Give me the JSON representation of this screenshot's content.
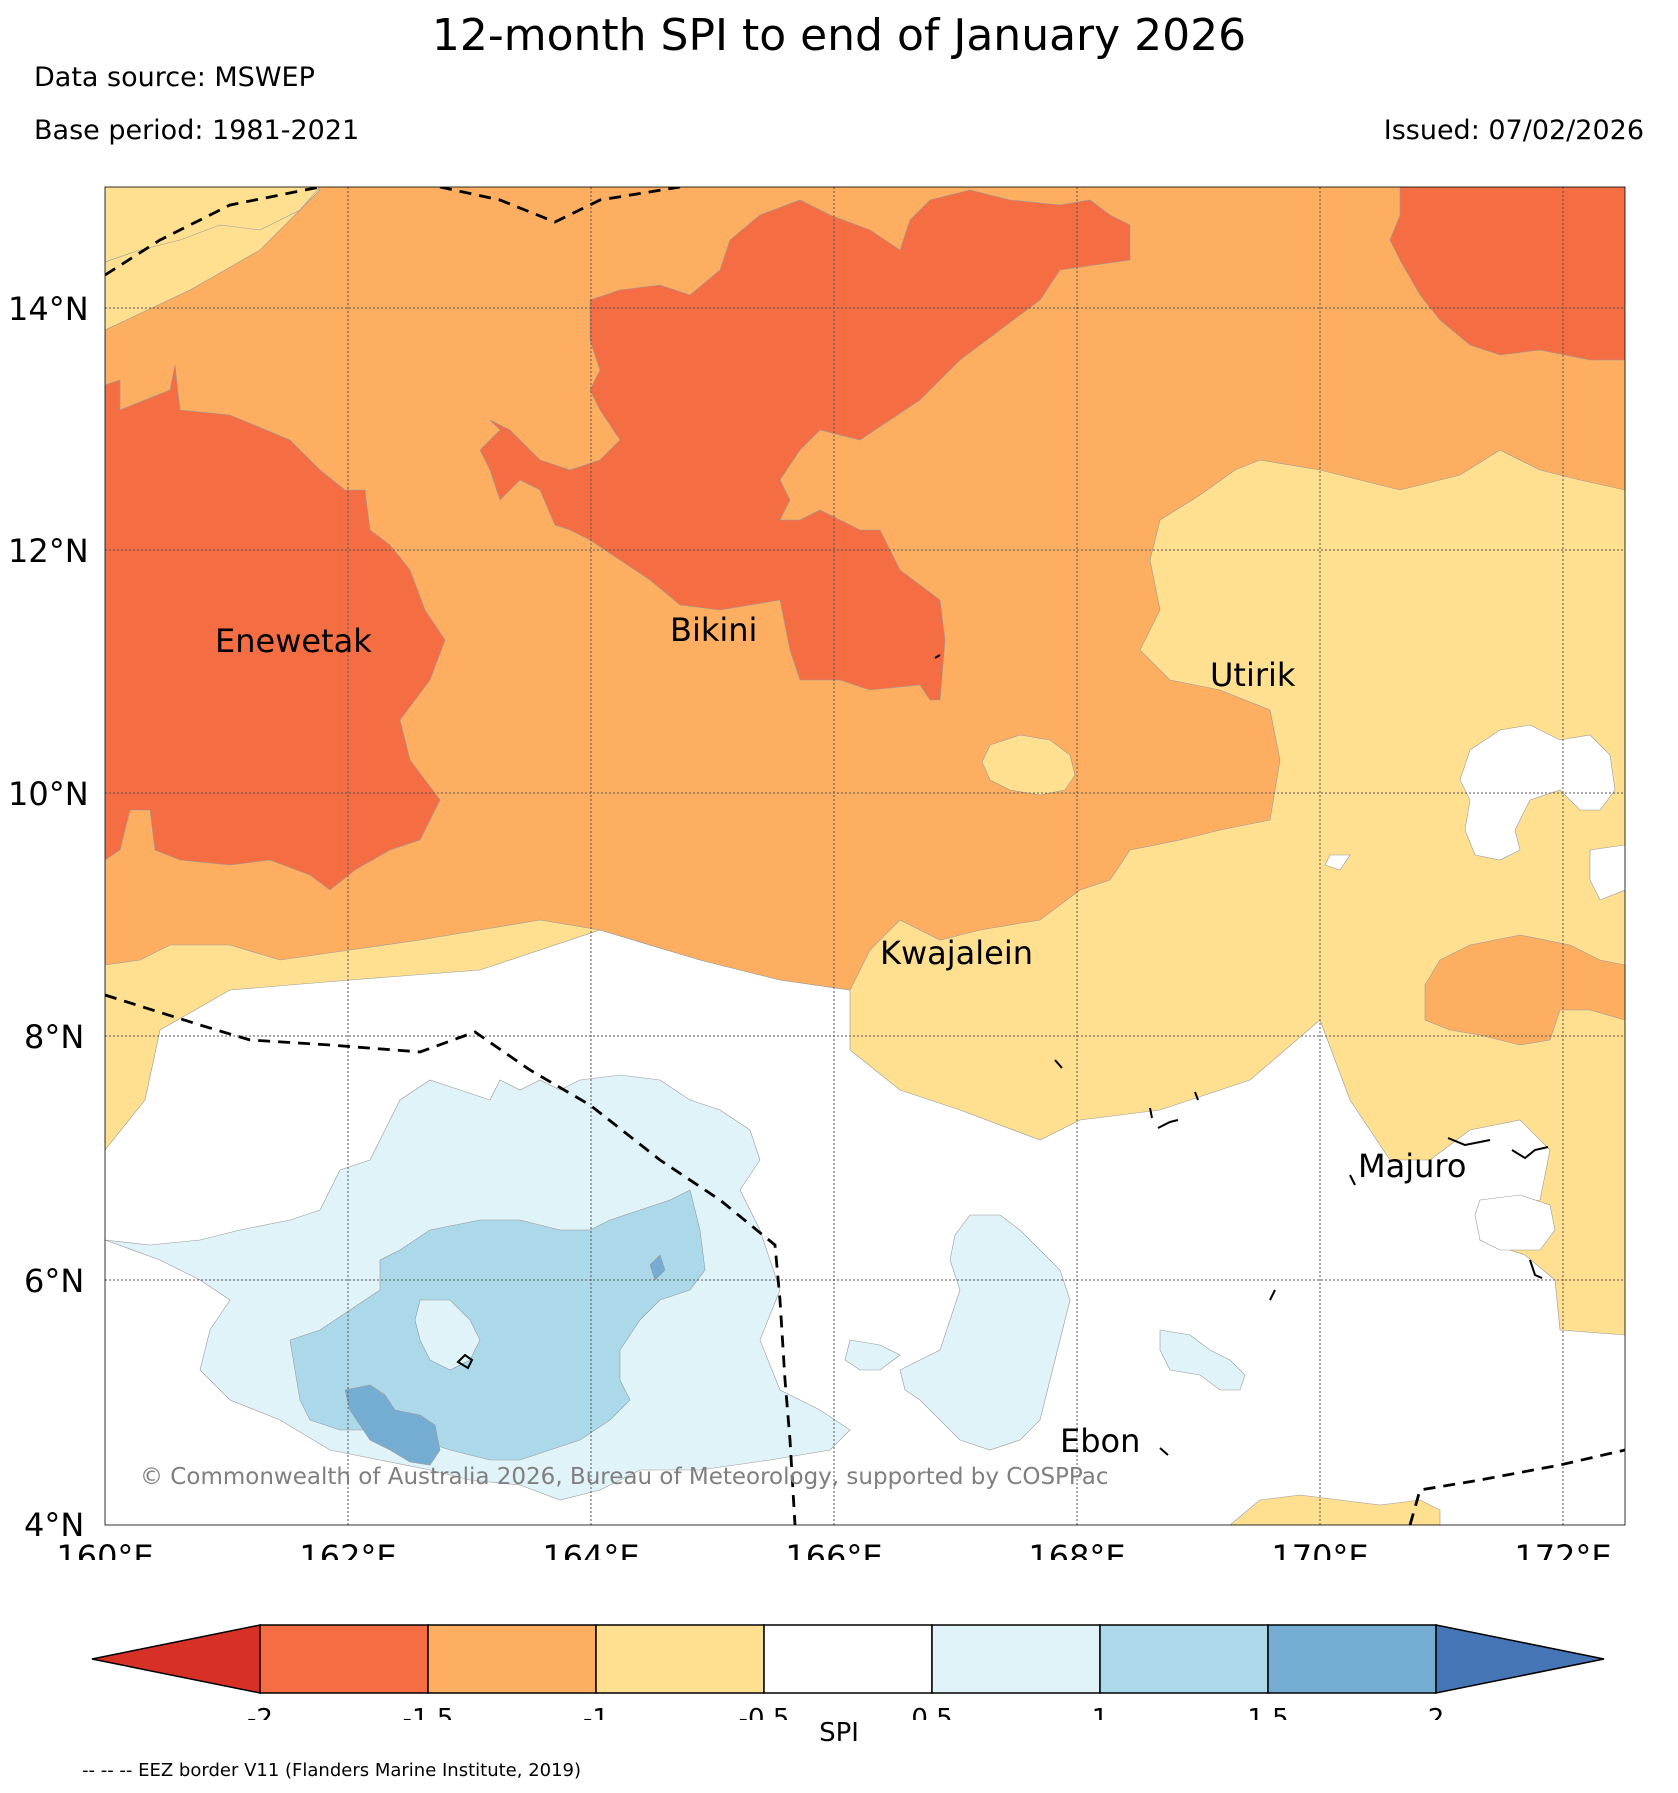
{
  "header": {
    "title": "12-month SPI to end of January 2026",
    "data_source": "Data source: MSWEP",
    "base_period": "Base period: 1981-2021",
    "issued": "Issued: 07/02/2026"
  },
  "map": {
    "lat_labels": [
      "14°N",
      "12°N",
      "10°N",
      "8°N",
      "6°N",
      "4°N"
    ],
    "lon_labels": [
      "160°E",
      "162°E",
      "164°E",
      "166°E",
      "168°E",
      "170°E",
      "172°E"
    ],
    "places": {
      "enewetak": "Enewetak",
      "bikini": "Bikini",
      "utirik": "Utirik",
      "kwajalein": "Kwajalein",
      "majuro": "Majuro",
      "ebon": "Ebon"
    },
    "copyright": "© Commonwealth of Australia 2026, Bureau of Meteorology, supported by COSPPac"
  },
  "colorbar": {
    "ticks": [
      "-2",
      "-1.5",
      "-1",
      "-0.5",
      "0.5",
      "1",
      "1.5",
      "2"
    ],
    "label": "SPI",
    "colors": {
      "lt_-2": "#d73027",
      "-2_-1.5": "#f46d43",
      "-1.5_-1": "#fdae61",
      "-1_-0.5": "#fee090",
      "-0.5_0.5": "#ffffff",
      "0.5_1": "#e0f3f8",
      "1_1.5": "#abd9e9",
      "1.5_2": "#74add1",
      "gt_2": "#4575b4"
    }
  },
  "footer": {
    "eez_note": "-- -- -- EEZ border V11 (Flanders Marine Institute, 2019)"
  }
}
